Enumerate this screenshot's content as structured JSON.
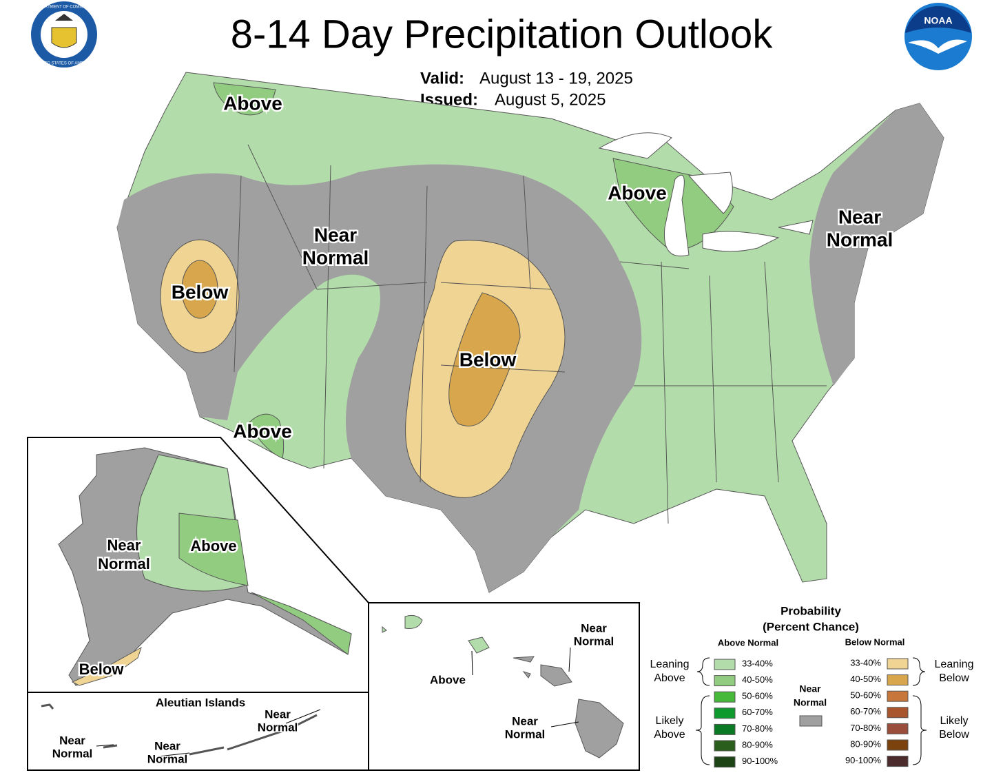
{
  "header": {
    "title": "8-14 Day Precipitation Outlook",
    "valid_label": "Valid:",
    "valid": "August 13 - 19, 2025",
    "issued_label": "Issued:",
    "issued": "August 5, 2025",
    "noaa_logo": "NOAA",
    "seal_top": "DEPARTMENT OF COMMERCE",
    "seal_bottom": "UNITED STATES OF AMERICA"
  },
  "conus_labels": [
    {
      "lines": [
        "Above"
      ]
    },
    {
      "lines": [
        "Above"
      ]
    },
    {
      "lines": [
        "Near",
        "Normal"
      ]
    },
    {
      "lines": [
        "Below"
      ]
    },
    {
      "lines": [
        "Below"
      ]
    },
    {
      "lines": [
        "Above"
      ]
    },
    {
      "lines": [
        "Near",
        "Normal"
      ]
    }
  ],
  "alaska_labels": [
    {
      "lines": [
        "Near",
        "Normal"
      ]
    },
    {
      "lines": [
        "Above"
      ]
    },
    {
      "lines": [
        "Below"
      ]
    }
  ],
  "aleutian": {
    "title": "Aleutian Islands",
    "labels": [
      {
        "lines": [
          "Near",
          "Normal"
        ]
      },
      {
        "lines": [
          "Near",
          "Normal"
        ]
      },
      {
        "lines": [
          "Near",
          "Normal"
        ]
      }
    ]
  },
  "hawaii_labels": [
    {
      "lines": [
        "Near",
        "Normal"
      ]
    },
    {
      "lines": [
        "Above"
      ]
    },
    {
      "lines": [
        "Near",
        "Normal"
      ]
    }
  ],
  "legend": {
    "title": [
      "Probability",
      "(Percent Chance)"
    ],
    "above_header": "Above Normal",
    "below_header": "Below Normal",
    "above": [
      {
        "range": "33-40%",
        "color": "#b3dcab"
      },
      {
        "range": "40-50%",
        "color": "#92cc80"
      },
      {
        "range": "50-60%",
        "color": "#46b83a"
      },
      {
        "range": "60-70%",
        "color": "#0f9a2d"
      },
      {
        "range": "70-80%",
        "color": "#0b7a24"
      },
      {
        "range": "80-90%",
        "color": "#2a5e1c"
      },
      {
        "range": "90-100%",
        "color": "#1c4414"
      }
    ],
    "below": [
      {
        "range": "33-40%",
        "color": "#f0d493"
      },
      {
        "range": "40-50%",
        "color": "#d8a74d"
      },
      {
        "range": "50-60%",
        "color": "#c9763a"
      },
      {
        "range": "60-70%",
        "color": "#a9552e"
      },
      {
        "range": "70-80%",
        "color": "#9a4d3a"
      },
      {
        "range": "80-90%",
        "color": "#7b420e"
      },
      {
        "range": "90-100%",
        "color": "#4b2b2b"
      }
    ],
    "leaning_above": [
      "Leaning",
      "Above"
    ],
    "likely_above": [
      "Likely",
      "Above"
    ],
    "near_normal": [
      "Near",
      "Normal"
    ],
    "near_color": "#a0a0a0",
    "leaning_below": [
      "Leaning",
      "Below"
    ],
    "likely_below": [
      "Likely",
      "Below"
    ]
  }
}
